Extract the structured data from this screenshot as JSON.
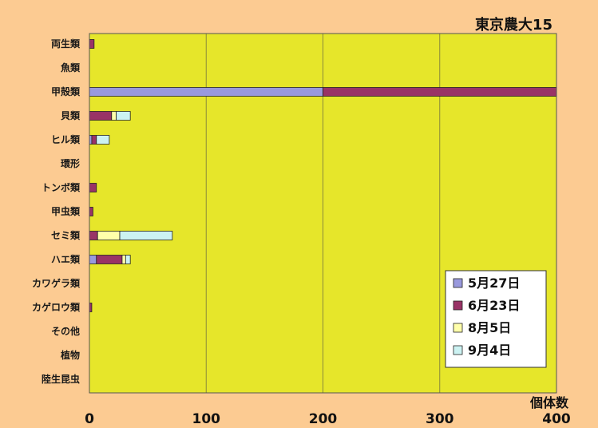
{
  "chart_data": {
    "type": "bar",
    "orientation": "horizontal",
    "stacked": true,
    "title": "東京農大15",
    "xlabel": "個体数",
    "ylabel": "",
    "xlim": [
      0,
      400
    ],
    "xticks": [
      0,
      100,
      200,
      300,
      400
    ],
    "grid": true,
    "legend_position": "bottom-right",
    "background_color": "#fccb92",
    "plot_color": "#e6e62a",
    "categories": [
      "両生類",
      "魚類",
      "甲殻類",
      "貝類",
      "ヒル類",
      "環形",
      "トンボ類",
      "甲虫類",
      "セミ類",
      "ハエ類",
      "カワゲラ類",
      "カゲロウ類",
      "その他",
      "植物",
      "陸生昆虫"
    ],
    "series": [
      {
        "name": "5月27日",
        "color": "#9999dd",
        "values": [
          0,
          0,
          200,
          0,
          2,
          0,
          0,
          0,
          0,
          6,
          0,
          0,
          0,
          0,
          0
        ]
      },
      {
        "name": "6月23日",
        "color": "#993366",
        "values": [
          4,
          0,
          200,
          19,
          4,
          0,
          6,
          3,
          7,
          22,
          0,
          2,
          0,
          0,
          0
        ]
      },
      {
        "name": "8月5日",
        "color": "#ffffaa",
        "values": [
          0,
          0,
          0,
          4,
          0,
          0,
          0,
          0,
          19,
          3,
          0,
          0,
          0,
          0,
          0
        ]
      },
      {
        "name": "9月4日",
        "color": "#ccf2f2",
        "values": [
          0,
          0,
          0,
          12,
          11,
          0,
          0,
          0,
          45,
          4,
          0,
          0,
          0,
          0,
          0
        ]
      }
    ]
  }
}
